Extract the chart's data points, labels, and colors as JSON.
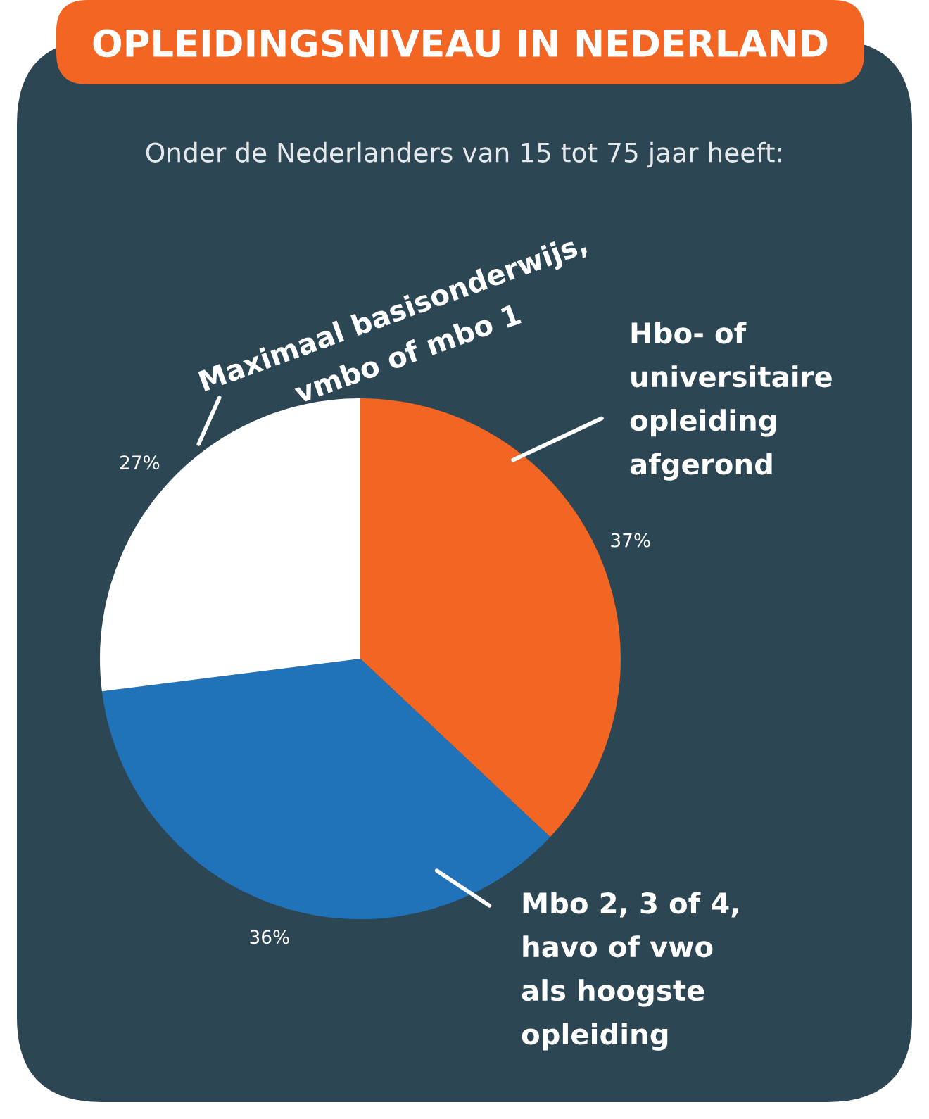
{
  "chart_data": {
    "type": "pie",
    "title": "OPLEIDINGSNIVEAU IN NEDERLAND",
    "subtitle": "Onder de Nederlanders van 15 tot 75 jaar heeft:",
    "categories": [
      "Hbo- of\nuniversitaire\nopleiding\nafgerond",
      "Mbo 2, 3 of 4,\nhavo of vwo\nals hoogste\nopleiding",
      "Maximaal basisonderwijs,\nvmbo of mbo 1"
    ],
    "values": [
      37,
      36,
      27
    ],
    "colors": [
      "#f26522",
      "#2173b9",
      "#ffffff"
    ],
    "value_labels": [
      "37%",
      "36%",
      "27%"
    ],
    "legend": false
  }
}
